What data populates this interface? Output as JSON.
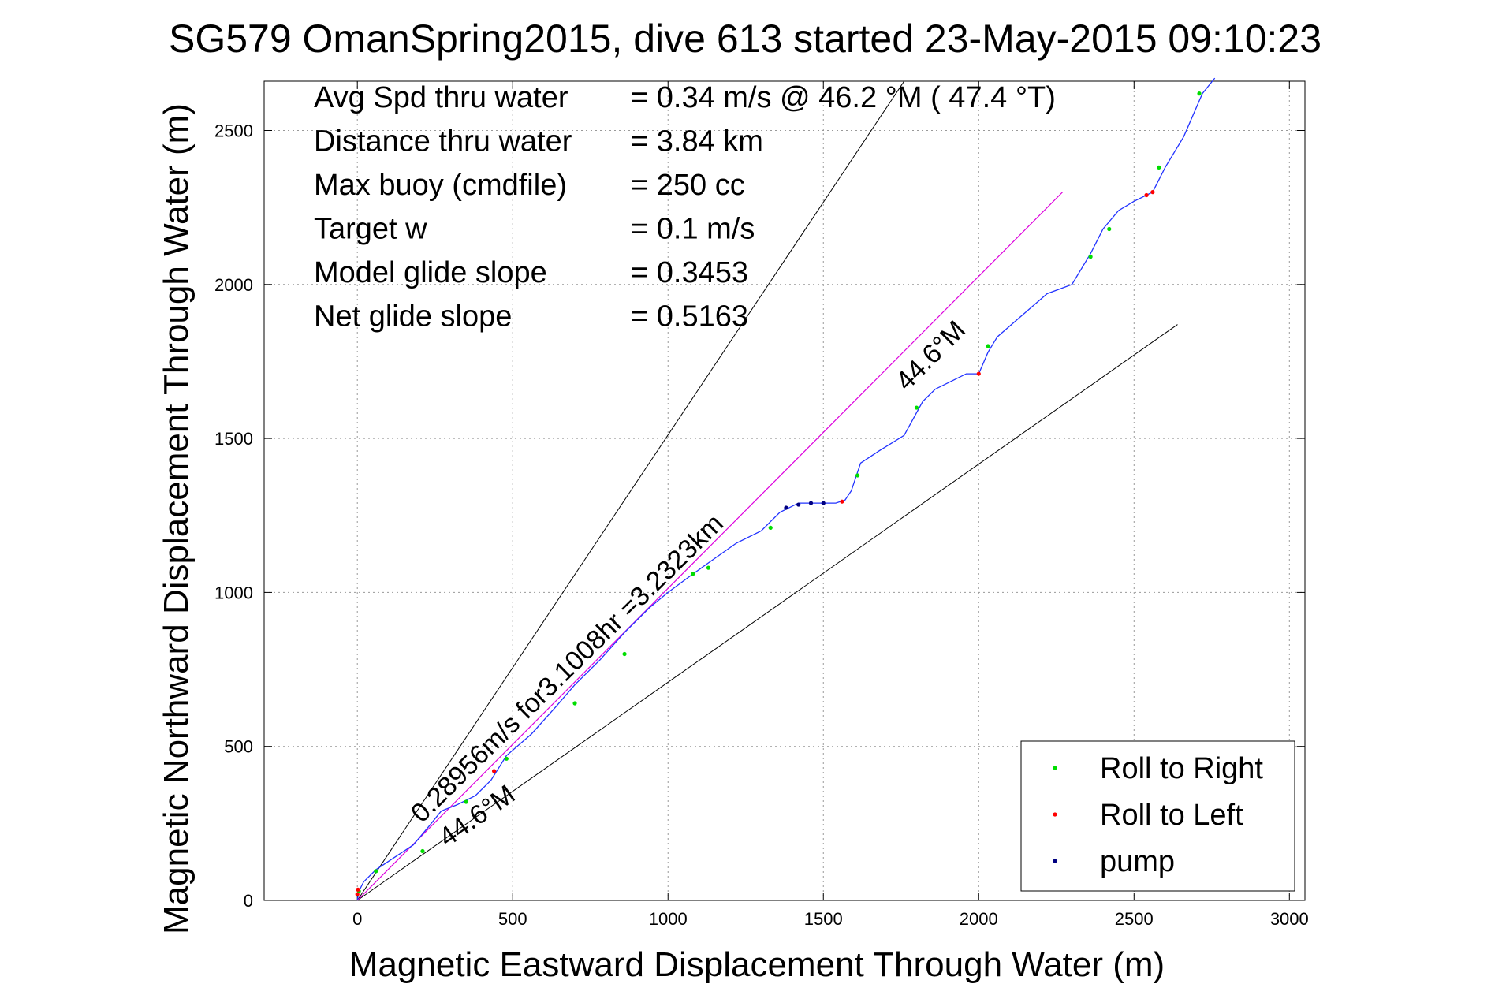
{
  "chart_data": {
    "type": "line",
    "title": "SG579 OmanSpring2015, dive 613 started 23-May-2015 09:10:23",
    "xlabel": "Magnetic Eastward Displacement Through Water (m)",
    "ylabel": "Magnetic Northward Displacement Through Water (m)",
    "xlim": [
      -300,
      3050
    ],
    "ylim": [
      0,
      2660
    ],
    "xticks": [
      "0",
      "500",
      "1000",
      "1500",
      "2000",
      "2500",
      "3000"
    ],
    "yticks": [
      "0",
      "500",
      "1000",
      "1500",
      "2000",
      "2500"
    ],
    "grid": true,
    "legend_position": "bottom-right",
    "stats": [
      {
        "label": "Avg Spd thru water",
        "value": "=  0.34 m/s @  46.2 °M ( 47.4 °T)"
      },
      {
        "label": "Distance thru water",
        "value": "=  3.84 km"
      },
      {
        "label": "Max buoy (cmdfile)",
        "value": "= 250 cc"
      },
      {
        "label": "Target w",
        "value": "= 0.1 m/s"
      },
      {
        "label": "Model glide slope",
        "value": "= 0.3453"
      },
      {
        "label": "Net glide slope",
        "value": "= 0.5163"
      }
    ],
    "annotations": {
      "current": "0.28956m/s for3.1008hr =3.2323km",
      "heading_low": "44.6°M",
      "heading_high": "44.6°M"
    },
    "legend": [
      {
        "label": "Roll to Right",
        "color": "#00dd00"
      },
      {
        "label": "Roll to Left",
        "color": "#ff0000"
      },
      {
        "label": "pump",
        "color": "#000080"
      }
    ],
    "colors": {
      "track": "#2233ff",
      "current": "#dd00dd",
      "limits": "#000000"
    },
    "limit_lines": [
      {
        "x": [
          0,
          1760
        ],
        "y": [
          0,
          2660
        ]
      },
      {
        "x": [
          0,
          2640
        ],
        "y": [
          0,
          1870
        ]
      }
    ],
    "current_line": {
      "x": [
        0,
        2270
      ],
      "y": [
        0,
        2300
      ]
    },
    "track": {
      "x": [
        0,
        5,
        20,
        60,
        120,
        180,
        230,
        270,
        320,
        380,
        430,
        480,
        560,
        640,
        700,
        780,
        860,
        940,
        1000,
        1080,
        1150,
        1220,
        1300,
        1360,
        1420,
        1480,
        1540,
        1570,
        1590,
        1620,
        1680,
        1760,
        1820,
        1860,
        1920,
        1960,
        2000,
        2030,
        2060,
        2140,
        2220,
        2300,
        2360,
        2400,
        2450,
        2500,
        2560,
        2600,
        2660,
        2720,
        2760
      ],
      "y": [
        0,
        30,
        60,
        100,
        140,
        180,
        240,
        290,
        310,
        340,
        390,
        470,
        540,
        630,
        700,
        780,
        870,
        950,
        1000,
        1060,
        1110,
        1160,
        1200,
        1260,
        1290,
        1290,
        1290,
        1300,
        1330,
        1420,
        1460,
        1510,
        1620,
        1660,
        1690,
        1710,
        1710,
        1780,
        1830,
        1900,
        1970,
        2000,
        2100,
        2180,
        2240,
        2270,
        2300,
        2380,
        2480,
        2620,
        2670
      ]
    },
    "roll_right": [
      [
        5,
        30
      ],
      [
        60,
        95
      ],
      [
        210,
        160
      ],
      [
        350,
        320
      ],
      [
        480,
        460
      ],
      [
        700,
        640
      ],
      [
        860,
        800
      ],
      [
        1080,
        1060
      ],
      [
        1130,
        1080
      ],
      [
        1330,
        1210
      ],
      [
        1610,
        1380
      ],
      [
        1800,
        1600
      ],
      [
        2030,
        1800
      ],
      [
        2360,
        2090
      ],
      [
        2420,
        2180
      ],
      [
        2580,
        2380
      ],
      [
        2710,
        2620
      ]
    ],
    "roll_left": [
      [
        0,
        20
      ],
      [
        2,
        35
      ],
      [
        440,
        420
      ],
      [
        1560,
        1295
      ],
      [
        2000,
        1710
      ],
      [
        2540,
        2290
      ],
      [
        2560,
        2300
      ]
    ],
    "pump": [
      [
        1380,
        1275
      ],
      [
        1420,
        1285
      ],
      [
        1460,
        1290
      ],
      [
        1500,
        1290
      ]
    ]
  }
}
